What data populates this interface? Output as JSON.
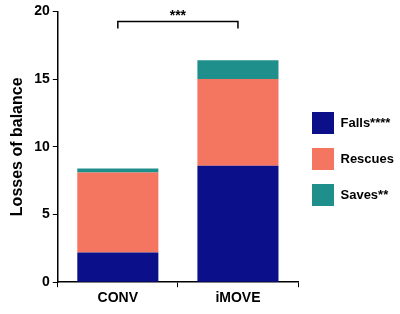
{
  "chart_data": {
    "type": "bar",
    "stacked": true,
    "categories": [
      "CONV",
      "iMOVE"
    ],
    "series": [
      {
        "name": "Falls****",
        "color": "#0b0f8a",
        "values": [
          2.2,
          8.6
        ]
      },
      {
        "name": "Rescues",
        "color": "#f47560",
        "values": [
          5.9,
          6.4
        ]
      },
      {
        "name": "Saves**",
        "color": "#1f8f8c",
        "values": [
          0.3,
          1.4
        ]
      }
    ],
    "y_label": "Losses of balance",
    "ylim": [
      0,
      20
    ],
    "yticks": [
      0,
      5,
      10,
      15,
      20
    ],
    "grid": false,
    "legend": "right",
    "annotations": [
      {
        "text": "***",
        "from": "CONV",
        "to": "iMOVE"
      }
    ]
  }
}
